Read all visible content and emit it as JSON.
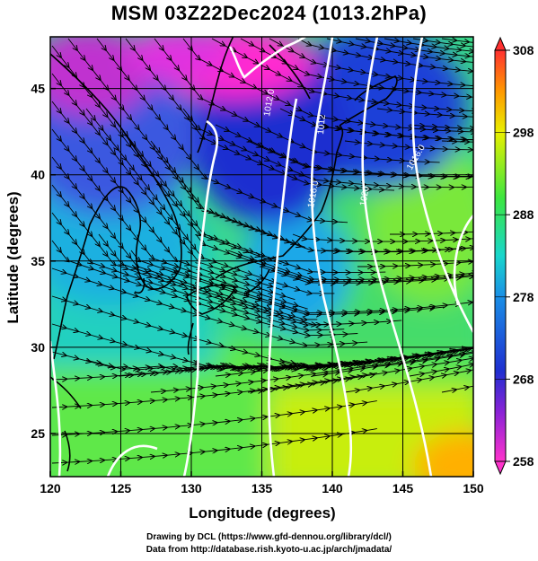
{
  "title": "MSM 03Z22Dec2024 (1013.2hPa)",
  "x_axis": {
    "label": "Longitude (degrees)",
    "ticks": [
      "120",
      "125",
      "130",
      "135",
      "140",
      "145",
      "150"
    ]
  },
  "y_axis": {
    "label": "Latitude  (degrees)",
    "ticks": [
      "25",
      "30",
      "35",
      "40",
      "45"
    ]
  },
  "colorbar": {
    "ticks": [
      "308",
      "298",
      "288",
      "278",
      "268",
      "258"
    ],
    "min": 258,
    "max": 308
  },
  "isobar_labels": [
    "1012.0",
    "1016.0",
    "1012",
    "1020",
    "1016.0"
  ],
  "credits": {
    "line1": "Drawing by DCL (https://www.gfd-dennou.org/library/dcl/)",
    "line2": "Data from http://database.rish.kyoto-u.ac.jp/arch/jmadata/"
  },
  "colors": {
    "cold_magenta": "#ff33cc",
    "blue": "#1f3fd6",
    "cyan": "#19d6cc",
    "green": "#3ce640",
    "yellow": "#e8f000",
    "orange": "#ff9900",
    "red": "#ff3030",
    "isobar": "#ffffff",
    "streamline": "#000000"
  }
}
